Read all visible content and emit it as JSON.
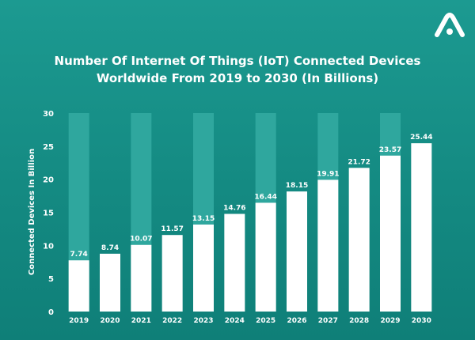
{
  "chart_data": {
    "type": "bar",
    "title_lines": [
      "Number Of Internet Of Things (IoT) Connected Devices",
      "Worldwide From 2019 to 2030 (In Billions)"
    ],
    "ylabel": "Connected Devices In Billion",
    "xlabel": "",
    "categories": [
      "2019",
      "2020",
      "2021",
      "2022",
      "2023",
      "2024",
      "2025",
      "2026",
      "2027",
      "2028",
      "2029",
      "2030"
    ],
    "values": [
      7.74,
      8.74,
      10.07,
      11.57,
      13.15,
      14.76,
      16.44,
      18.15,
      19.91,
      21.72,
      23.57,
      25.44
    ],
    "value_labels": [
      "7.74",
      "8.74",
      "10.07",
      "11.57",
      "13.15",
      "14.76",
      "16.44",
      "18.15",
      "19.91",
      "21.72",
      "23.57",
      "25.44"
    ],
    "ylim": [
      0,
      30
    ],
    "yticks": [
      0,
      5,
      10,
      15,
      20,
      25,
      30
    ],
    "grid": false,
    "legend": "none",
    "alternating_column_bands": true
  },
  "colors": {
    "background": "#178f87",
    "bar": "#ffffff",
    "column_band": "#2fa79e",
    "text": "#ffffff"
  },
  "logo_icon": "brand-logo-icon"
}
